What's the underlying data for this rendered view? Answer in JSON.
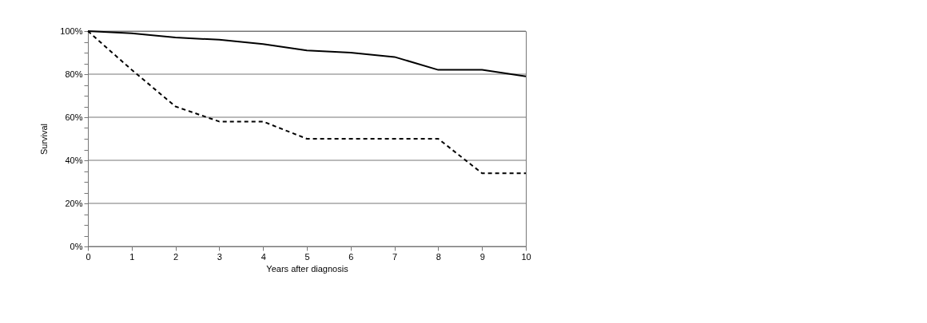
{
  "chart_data": {
    "type": "line",
    "xlabel": "Years after diagnosis",
    "ylabel": "Survival",
    "x": [
      0,
      1,
      2,
      3,
      4,
      5,
      6,
      7,
      8,
      9,
      10
    ],
    "series": [
      {
        "color": "#000000",
        "line_style": "solid",
        "values": [
          100,
          99,
          97,
          96,
          94,
          91,
          90,
          88,
          82,
          82,
          79
        ]
      },
      {
        "color": "#000000",
        "line_style": "dashed",
        "values": [
          100,
          82,
          65,
          58,
          58,
          50,
          50,
          50,
          50,
          34,
          34
        ]
      }
    ],
    "xlim": [
      0,
      10
    ],
    "xticks": [
      0,
      1,
      2,
      3,
      4,
      5,
      6,
      7,
      8,
      9,
      10
    ],
    "ylim": [
      0,
      100
    ],
    "yticks": [
      {
        "value": 0,
        "label": "0%"
      },
      {
        "value": 5,
        "label": null
      },
      {
        "value": 10,
        "label": null
      },
      {
        "value": 15,
        "label": null
      },
      {
        "value": 20,
        "label": "20%"
      },
      {
        "value": 25,
        "label": null
      },
      {
        "value": 30,
        "label": null
      },
      {
        "value": 35,
        "label": null
      },
      {
        "value": 40,
        "label": "40%"
      },
      {
        "value": 45,
        "label": null
      },
      {
        "value": 50,
        "label": null
      },
      {
        "value": 55,
        "label": null
      },
      {
        "value": 60,
        "label": "60%"
      },
      {
        "value": 65,
        "label": null
      },
      {
        "value": 70,
        "label": null
      },
      {
        "value": 75,
        "label": null
      },
      {
        "value": 80,
        "label": "80%"
      },
      {
        "value": 85,
        "label": null
      },
      {
        "value": 90,
        "label": null
      },
      {
        "value": 95,
        "label": null
      },
      {
        "value": 100,
        "label": "100%"
      }
    ],
    "grid": "y",
    "marker": "none"
  }
}
